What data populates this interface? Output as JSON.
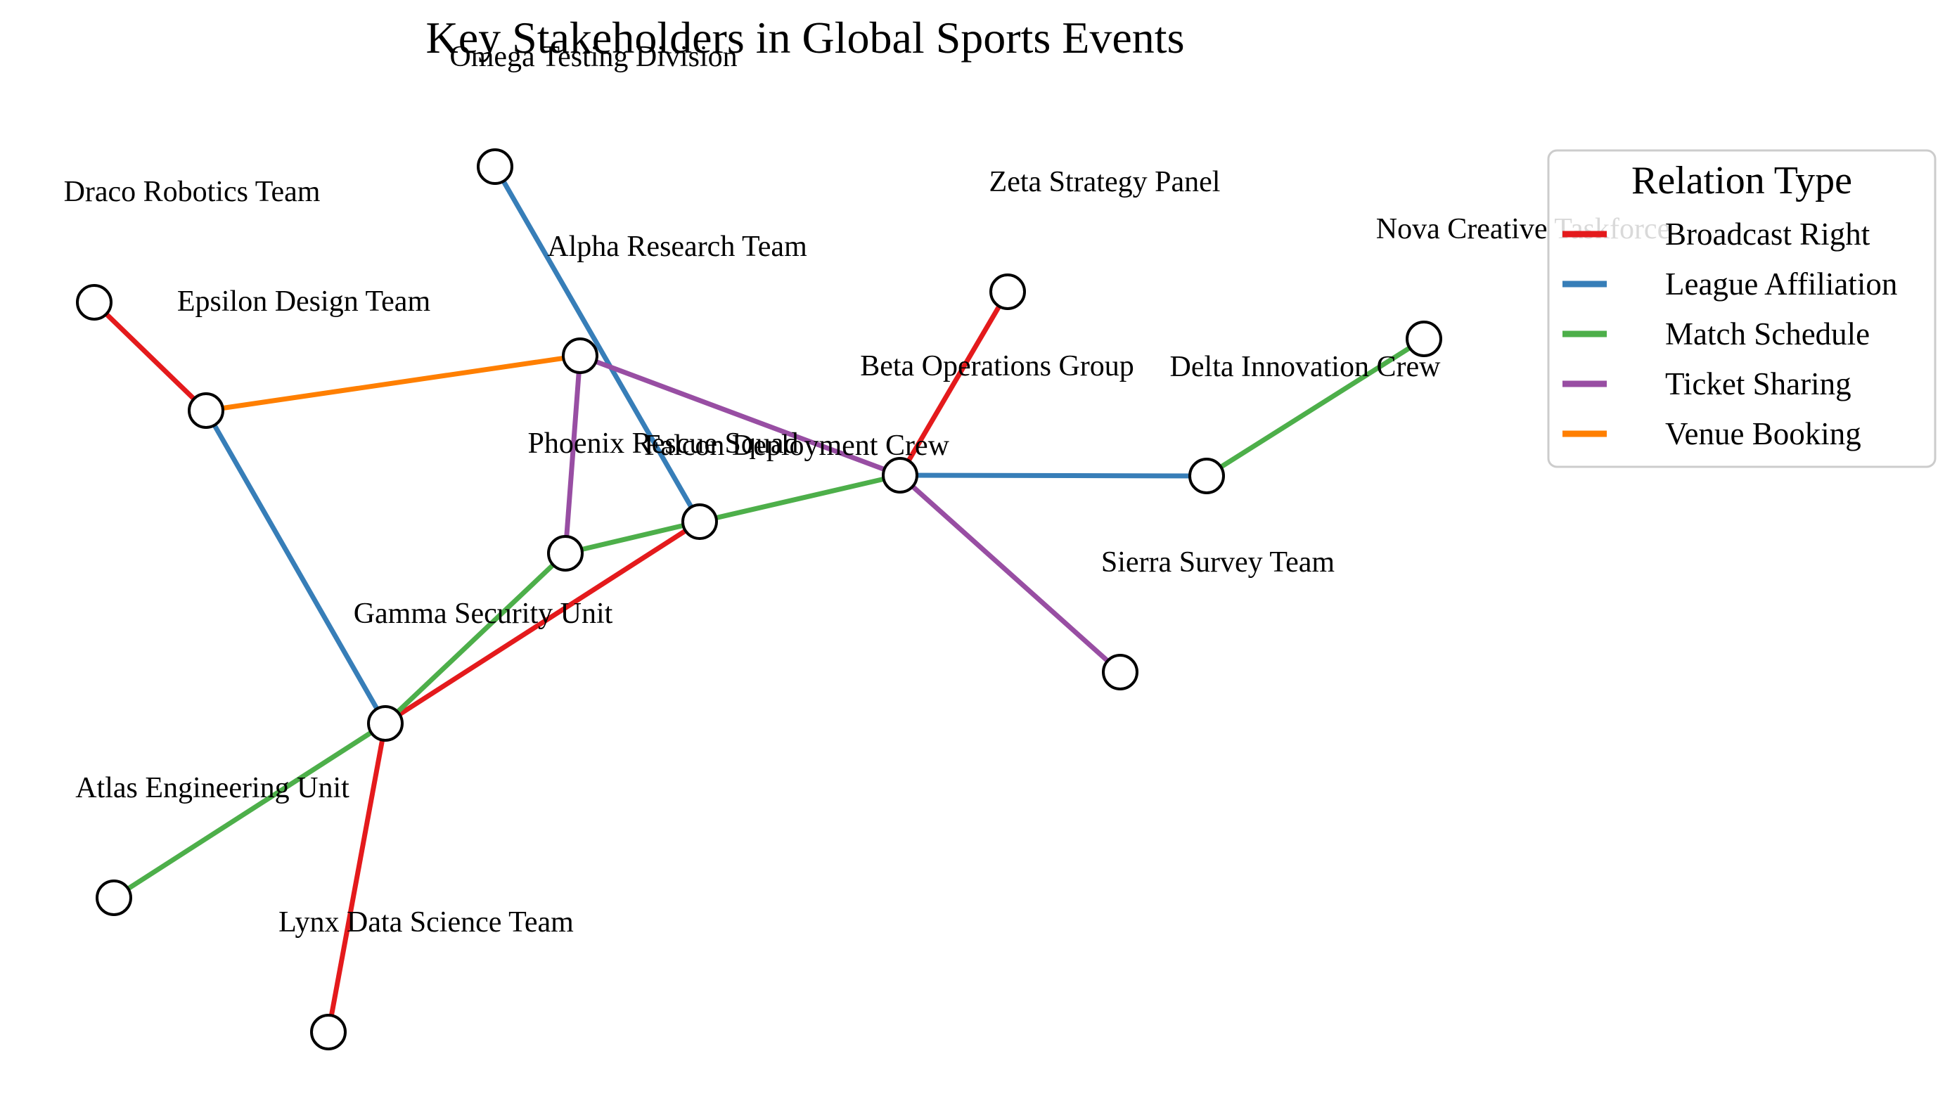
{
  "title": "Key Stakeholders in Global Sports Events",
  "legend": {
    "title": "Relation Type",
    "items": [
      {
        "label": "Broadcast Right",
        "color": "#e41a1c"
      },
      {
        "label": "League Affiliation",
        "color": "#377eb8"
      },
      {
        "label": "Match Schedule",
        "color": "#4daf4a"
      },
      {
        "label": "Ticket Sharing",
        "color": "#984ea3"
      },
      {
        "label": "Venue Booking",
        "color": "#ff7f00"
      }
    ]
  },
  "nodes": [
    {
      "id": "omega",
      "label": "Omega Testing Division"
    },
    {
      "id": "draco",
      "label": "Draco Robotics Team"
    },
    {
      "id": "zeta",
      "label": "Zeta Strategy Panel"
    },
    {
      "id": "nova",
      "label": "Nova Creative Taskforce"
    },
    {
      "id": "alpha",
      "label": "Alpha Research Team"
    },
    {
      "id": "epsilon",
      "label": "Epsilon Design Team"
    },
    {
      "id": "beta",
      "label": "Beta Operations Group"
    },
    {
      "id": "delta",
      "label": "Delta Innovation Crew"
    },
    {
      "id": "phoenix",
      "label": "Phoenix Rescue Squad"
    },
    {
      "id": "falcon",
      "label": "Falcon Deployment Crew"
    },
    {
      "id": "sierra",
      "label": "Sierra Survey Team"
    },
    {
      "id": "gamma",
      "label": "Gamma Security Unit"
    },
    {
      "id": "atlas",
      "label": "Atlas Engineering Unit"
    },
    {
      "id": "lynx",
      "label": "Lynx Data Science Team"
    }
  ],
  "edges": [
    {
      "source": "omega",
      "target": "falcon",
      "relation": "League Affiliation"
    },
    {
      "source": "draco",
      "target": "epsilon",
      "relation": "Broadcast Right"
    },
    {
      "source": "epsilon",
      "target": "alpha",
      "relation": "Venue Booking"
    },
    {
      "source": "epsilon",
      "target": "gamma",
      "relation": "League Affiliation"
    },
    {
      "source": "alpha",
      "target": "beta",
      "relation": "Ticket Sharing"
    },
    {
      "source": "alpha",
      "target": "phoenix",
      "relation": "Ticket Sharing"
    },
    {
      "source": "zeta",
      "target": "beta",
      "relation": "Broadcast Right"
    },
    {
      "source": "beta",
      "target": "delta",
      "relation": "League Affiliation"
    },
    {
      "source": "delta",
      "target": "nova",
      "relation": "Match Schedule"
    },
    {
      "source": "beta",
      "target": "sierra",
      "relation": "Ticket Sharing"
    },
    {
      "source": "beta",
      "target": "falcon",
      "relation": "Match Schedule"
    },
    {
      "source": "falcon",
      "target": "phoenix",
      "relation": "Match Schedule"
    },
    {
      "source": "falcon",
      "target": "gamma",
      "relation": "Broadcast Right"
    },
    {
      "source": "phoenix",
      "target": "gamma",
      "relation": "Match Schedule"
    },
    {
      "source": "gamma",
      "target": "atlas",
      "relation": "Match Schedule"
    },
    {
      "source": "gamma",
      "target": "lynx",
      "relation": "Broadcast Right"
    }
  ]
}
